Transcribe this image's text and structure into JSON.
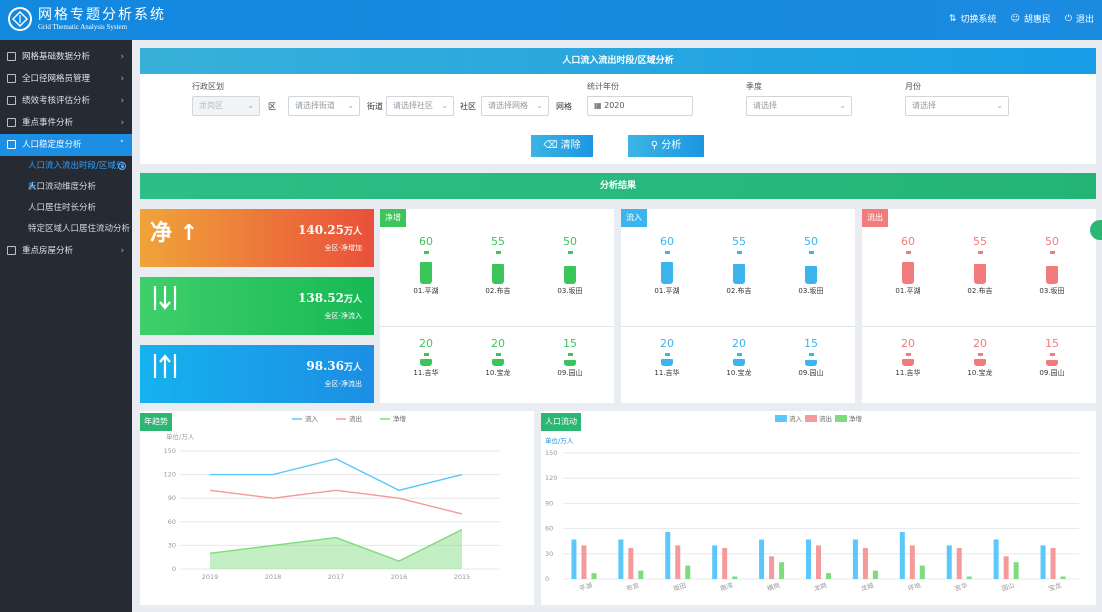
{
  "header": {
    "title": "网格专题分析系统",
    "subtitle": "Grid Thematic Analysis System",
    "actions": {
      "switch": "切换系统",
      "user": "胡惠民",
      "logout": "退出"
    }
  },
  "sidebar": {
    "items": [
      {
        "label": "网格基础数据分析"
      },
      {
        "label": "全口径网格员管理"
      },
      {
        "label": "绩效考核评估分析"
      },
      {
        "label": "重点事件分析"
      },
      {
        "label": "人口稳定度分析"
      },
      {
        "label": "重点房屋分析"
      }
    ],
    "sub": [
      {
        "label": "人口流入流出时段/区域分析"
      },
      {
        "label": "人口流动维度分析"
      },
      {
        "label": "人口居住时长分析"
      },
      {
        "label": "特定区域人口居住流动分析"
      }
    ]
  },
  "filter": {
    "title": "人口流入流出时段/区域分析",
    "district_label": "行政区划",
    "district_value": "龙岗区",
    "qu": "区",
    "street_label": "街道",
    "street_placeholder": "请选择街道",
    "community_label": "社区",
    "community_placeholder": "请选择社区",
    "grid_label": "网格",
    "grid_placeholder": "请选择网格",
    "year_label": "统计年份",
    "year_value": "2020",
    "quarter_label": "季度",
    "quarter_placeholder": "请选择",
    "month_label": "月份",
    "month_placeholder": "请选择",
    "clear_btn": "清除",
    "analyze_btn": "分析"
  },
  "results_title": "分析结果",
  "stats": [
    {
      "big": "净",
      "value": "140.25",
      "unit": "万人",
      "label": "全区-净增加",
      "color_from": "#f0a43a",
      "color_to": "#e9503a"
    },
    {
      "big": "",
      "value": "138.52",
      "unit": "万人",
      "label": "全区-净流入",
      "color_from": "#3fcf6a",
      "color_to": "#17b955"
    },
    {
      "big": "",
      "value": "98.36",
      "unit": "万人",
      "label": "全区-净流出",
      "color_from": "#15b2ee",
      "color_to": "#1d8ee4"
    }
  ],
  "cards": [
    {
      "tag": "净增",
      "color": "#3cc55a",
      "top": [
        {
          "n": 60,
          "t": "01.平湖"
        },
        {
          "n": 55,
          "t": "02.布吉"
        },
        {
          "n": 50,
          "t": "03.坂田"
        }
      ],
      "bottom": [
        {
          "n": 20,
          "t": "11.吉华"
        },
        {
          "n": 20,
          "t": "10.宝龙"
        },
        {
          "n": 15,
          "t": "09.园山"
        }
      ]
    },
    {
      "tag": "流入",
      "color": "#3cb5ef",
      "top": [
        {
          "n": 60,
          "t": "01.平湖"
        },
        {
          "n": 55,
          "t": "02.布吉"
        },
        {
          "n": 50,
          "t": "03.坂田"
        }
      ],
      "bottom": [
        {
          "n": 20,
          "t": "11.吉华"
        },
        {
          "n": 20,
          "t": "10.宝龙"
        },
        {
          "n": 15,
          "t": "09.园山"
        }
      ]
    },
    {
      "tag": "流出",
      "color": "#f27c7c",
      "top": [
        {
          "n": 60,
          "t": "01.平湖"
        },
        {
          "n": 55,
          "t": "02.布吉"
        },
        {
          "n": 50,
          "t": "03.坂田"
        }
      ],
      "bottom": [
        {
          "n": 20,
          "t": "11.吉华"
        },
        {
          "n": 20,
          "t": "10.宝龙"
        },
        {
          "n": 15,
          "t": "09.园山"
        }
      ]
    }
  ],
  "chart_data": [
    {
      "type": "line",
      "tag": "年趋势",
      "unit": "单位/万人",
      "x": [
        "2019",
        "2018",
        "2017",
        "2016",
        "2015"
      ],
      "ylim": [
        0,
        150
      ],
      "yticks": [
        0,
        30,
        60,
        90,
        120,
        150
      ],
      "series": [
        {
          "name": "流入",
          "color": "#5ac8fa",
          "values": [
            120,
            120,
            140,
            100,
            120
          ]
        },
        {
          "name": "流出",
          "color": "#f59a9a",
          "values": [
            100,
            90,
            100,
            90,
            70
          ]
        },
        {
          "name": "净增",
          "color": "#7ddc7d",
          "values": [
            20,
            30,
            40,
            10,
            50
          ]
        }
      ]
    },
    {
      "type": "bar",
      "tag": "人口流动",
      "unit": "单位/万人",
      "categories": [
        "平湖",
        "布吉",
        "坂田",
        "南湾",
        "横岗",
        "龙岗",
        "龙城",
        "坪地",
        "吉华",
        "园山",
        "宝龙"
      ],
      "ylim": [
        0,
        150
      ],
      "yticks": [
        0,
        30,
        60,
        90,
        120,
        150
      ],
      "series": [
        {
          "name": "流入",
          "color": "#5ac8fa",
          "values": [
            47,
            47,
            56,
            40,
            47,
            47,
            47,
            56,
            40,
            47,
            40
          ]
        },
        {
          "name": "流出",
          "color": "#f59a9a",
          "values": [
            40,
            37,
            40,
            37,
            27,
            40,
            37,
            40,
            37,
            27,
            37
          ]
        },
        {
          "name": "净增",
          "color": "#7ddc7d",
          "values": [
            7,
            10,
            16,
            3,
            20,
            7,
            10,
            16,
            3,
            20,
            3
          ]
        }
      ]
    }
  ]
}
